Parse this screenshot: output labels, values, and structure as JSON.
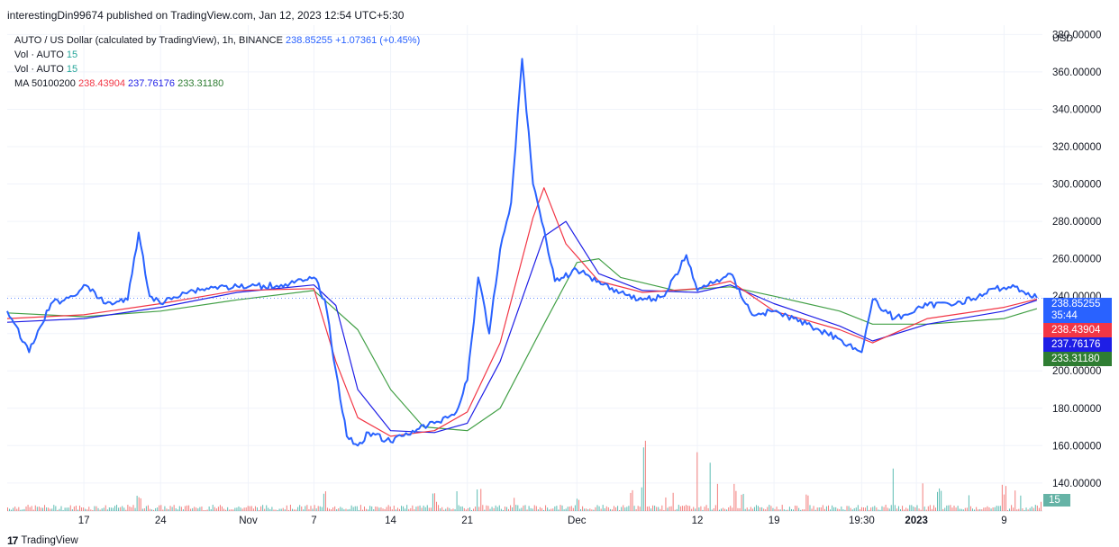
{
  "published": "interestingDin99674 published on TradingView.com, Jan 12, 2023 12:54 UTC+5:30",
  "legend": {
    "symbol": "AUTO / US Dollar (calculated by TradingView), 1h, BINANCE",
    "price": "238.85255",
    "change": "+1.07361 (+0.45%)",
    "vol1_label": "Vol · AUTO",
    "vol1_value": "15",
    "vol2_label": "Vol · AUTO",
    "vol2_value": "15",
    "ma_label": "MA 50100200",
    "ma50": "238.43904",
    "ma100": "237.76176",
    "ma200": "233.31180"
  },
  "axis": {
    "currency": "USD",
    "price_ticks": [
      "380.00000",
      "360.00000",
      "340.00000",
      "320.00000",
      "300.00000",
      "280.00000",
      "260.00000",
      "240.00000",
      "220.00000",
      "200.00000",
      "180.00000",
      "160.00000",
      "140.00000"
    ],
    "date_ticks": [
      "17",
      "24",
      "Nov",
      "7",
      "14",
      "21",
      "Dec",
      "12",
      "19",
      "19:30",
      "2023",
      "9"
    ]
  },
  "tags": {
    "last_price": "238.85255",
    "countdown": "35:44",
    "ma50": "238.43904",
    "ma100": "237.76176",
    "ma200": "233.31180",
    "volume": "15"
  },
  "colors": {
    "price_line": "#2962ff",
    "ma50": "#f23645",
    "ma100": "#1e1ee6",
    "ma200": "#43a047",
    "vol_up": "#26a69a",
    "vol_down": "#ef5350",
    "volume_tag": "#66b3a6"
  },
  "footer": {
    "brand": "TradingView"
  },
  "chart_data": {
    "type": "line",
    "title": "AUTO / US Dollar (calculated by TradingView), 1h, BINANCE",
    "ylabel": "USD",
    "ylim": [
      125,
      385
    ],
    "y_ticks": [
      140,
      160,
      180,
      200,
      220,
      240,
      260,
      280,
      300,
      320,
      340,
      360,
      380
    ],
    "x_ticks": [
      "17",
      "24",
      "Nov",
      "7",
      "14",
      "21",
      "Dec",
      "12",
      "19",
      "19:30",
      "2023",
      "9"
    ],
    "grid": true,
    "series": [
      {
        "name": "AUTO / US Dollar",
        "x": [
          "Oct 10",
          "Oct 12",
          "Oct 14",
          "Oct 16",
          "Oct 17",
          "Oct 19",
          "Oct 21",
          "Oct 22",
          "Oct 23",
          "Oct 24",
          "Oct 26",
          "Oct 29",
          "Nov 1",
          "Nov 4",
          "Nov 6",
          "Nov 7",
          "Nov 8",
          "Nov 9",
          "Nov 10",
          "Nov 11",
          "Nov 12",
          "Nov 14",
          "Nov 16",
          "Nov 18",
          "Nov 20",
          "Nov 21",
          "Nov 22",
          "Nov 23",
          "Nov 24",
          "Nov 25",
          "Nov 26",
          "Nov 27",
          "Nov 28",
          "Nov 29",
          "Dec 1",
          "Dec 3",
          "Dec 5",
          "Dec 7",
          "Dec 9",
          "Dec 11",
          "Dec 12",
          "Dec 13",
          "Dec 15",
          "Dec 17",
          "Dec 19",
          "Dec 22",
          "Dec 25",
          "Dec 27",
          "Dec 28",
          "Dec 30",
          "Jan 2",
          "Jan 5",
          "Jan 7",
          "Jan 8",
          "Jan 10",
          "Jan 12"
        ],
        "values": [
          232,
          210,
          236,
          240,
          246,
          236,
          238,
          274,
          240,
          236,
          242,
          245,
          245,
          246,
          248,
          250,
          238,
          200,
          165,
          160,
          167,
          162,
          168,
          172,
          178,
          195,
          250,
          220,
          265,
          290,
          367,
          300,
          276,
          248,
          254,
          248,
          242,
          238,
          240,
          262,
          243,
          246,
          252,
          230,
          232,
          225,
          217,
          210,
          238,
          228,
          235,
          237,
          240,
          244,
          245,
          239
        ]
      },
      {
        "name": "MA 50",
        "x": [
          "Oct 10",
          "Oct 17",
          "Oct 24",
          "Oct 31",
          "Nov 7",
          "Nov 9",
          "Nov 11",
          "Nov 14",
          "Nov 18",
          "Nov 21",
          "Nov 24",
          "Nov 27",
          "Nov 28",
          "Nov 30",
          "Dec 3",
          "Dec 7",
          "Dec 12",
          "Dec 15",
          "Dec 19",
          "Dec 25",
          "Dec 28",
          "Jan 2",
          "Jan 9",
          "Jan 12"
        ],
        "values": [
          228,
          230,
          236,
          243,
          244,
          205,
          175,
          165,
          168,
          178,
          215,
          282,
          298,
          268,
          248,
          242,
          244,
          248,
          232,
          222,
          215,
          228,
          234,
          238.4
        ]
      },
      {
        "name": "MA 100",
        "x": [
          "Oct 10",
          "Oct 17",
          "Oct 24",
          "Oct 31",
          "Nov 7",
          "Nov 9",
          "Nov 11",
          "Nov 14",
          "Nov 18",
          "Nov 21",
          "Nov 24",
          "Nov 28",
          "Nov 30",
          "Dec 3",
          "Dec 7",
          "Dec 12",
          "Dec 15",
          "Dec 19",
          "Dec 25",
          "Dec 28",
          "Jan 2",
          "Jan 9",
          "Jan 12"
        ],
        "values": [
          226,
          228,
          234,
          242,
          246,
          235,
          190,
          168,
          167,
          172,
          205,
          272,
          280,
          252,
          243,
          242,
          246,
          236,
          224,
          216,
          225,
          232,
          237.8
        ]
      },
      {
        "name": "MA 200",
        "x": [
          "Oct 10",
          "Oct 17",
          "Oct 24",
          "Oct 31",
          "Nov 7",
          "Nov 11",
          "Nov 14",
          "Nov 17",
          "Nov 21",
          "Nov 24",
          "Nov 28",
          "Dec 1",
          "Dec 3",
          "Dec 5",
          "Dec 10",
          "Dec 15",
          "Dec 19",
          "Dec 25",
          "Dec 28",
          "Jan 2",
          "Jan 9",
          "Jan 12"
        ],
        "values": [
          231,
          229,
          232,
          238,
          243,
          222,
          190,
          170,
          168,
          180,
          225,
          258,
          260,
          250,
          243,
          245,
          240,
          232,
          225,
          225,
          228,
          233.3
        ]
      }
    ]
  }
}
